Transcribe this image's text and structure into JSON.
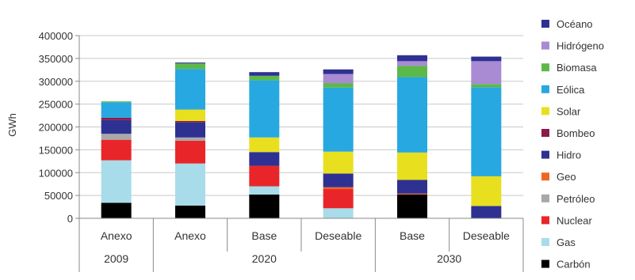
{
  "chart_data": {
    "type": "bar",
    "stacked": true,
    "ylabel": "GWh",
    "ylim": [
      0,
      400000
    ],
    "yticks": [
      0,
      50000,
      100000,
      150000,
      200000,
      250000,
      300000,
      350000,
      400000
    ],
    "ytick_labels": [
      "0",
      "50000",
      "100000",
      "150000",
      "200000",
      "250000",
      "300000",
      "350000",
      "400000"
    ],
    "grid": true,
    "legend_position": "right",
    "categories": [
      "Anexo",
      "Anexo",
      "Base",
      "Deseable",
      "Base",
      "Deseable"
    ],
    "groups": [
      {
        "label": "2009",
        "span": 1
      },
      {
        "label": "2020",
        "span": 3
      },
      {
        "label": "2030",
        "span": 2
      }
    ],
    "series": [
      {
        "name": "Carbón",
        "color": "#000000",
        "values": [
          34000,
          28000,
          52000,
          0,
          52000,
          0
        ]
      },
      {
        "name": "Gas",
        "color": "#a8dcea",
        "values": [
          93000,
          92000,
          18000,
          22000,
          0,
          0
        ]
      },
      {
        "name": "Nuclear",
        "color": "#e8262a",
        "values": [
          45000,
          50000,
          45000,
          42000,
          0,
          0
        ]
      },
      {
        "name": "Petróleo",
        "color": "#a8a8a8",
        "values": [
          13000,
          7000,
          0,
          0,
          0,
          0
        ]
      },
      {
        "name": "Geo",
        "color": "#f26522",
        "values": [
          0,
          0,
          0,
          4000,
          2000,
          0
        ]
      },
      {
        "name": "Hidro",
        "color": "#2e3192",
        "values": [
          30000,
          33000,
          30000,
          30000,
          30000,
          27000
        ]
      },
      {
        "name": "Bombeo",
        "color": "#8b1a4a",
        "values": [
          5000,
          3000,
          0,
          0,
          0,
          0
        ]
      },
      {
        "name": "Solar",
        "color": "#e8e01e",
        "values": [
          0,
          25000,
          32000,
          48000,
          60000,
          65000
        ]
      },
      {
        "name": "Eólica",
        "color": "#28a8e0",
        "values": [
          34000,
          89000,
          125000,
          140000,
          165000,
          195000
        ]
      },
      {
        "name": "Biomasa",
        "color": "#5cb84a",
        "values": [
          2000,
          12000,
          10000,
          10000,
          25000,
          7000
        ]
      },
      {
        "name": "Hidrógeno",
        "color": "#a98bd3",
        "values": [
          0,
          0,
          0,
          20000,
          10000,
          50000
        ]
      },
      {
        "name": "Océano",
        "color": "#2e3192",
        "values": [
          0,
          2000,
          8000,
          10000,
          13000,
          10000
        ]
      }
    ],
    "legend_order": [
      "Océano",
      "Hidrógeno",
      "Biomasa",
      "Eólica",
      "Solar",
      "Bombeo",
      "Hidro",
      "Geo",
      "Petróleo",
      "Nuclear",
      "Gas",
      "Carbón"
    ]
  }
}
